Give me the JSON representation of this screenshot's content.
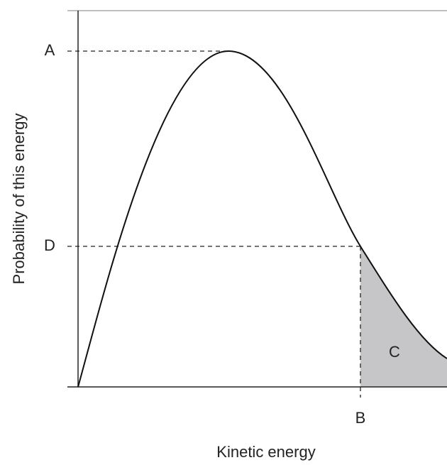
{
  "axes": {
    "x_label": "Kinetic energy",
    "y_label": "Probability of this energy"
  },
  "labels": {
    "a": "A",
    "d": "D",
    "b": "B",
    "c": "C"
  }
}
